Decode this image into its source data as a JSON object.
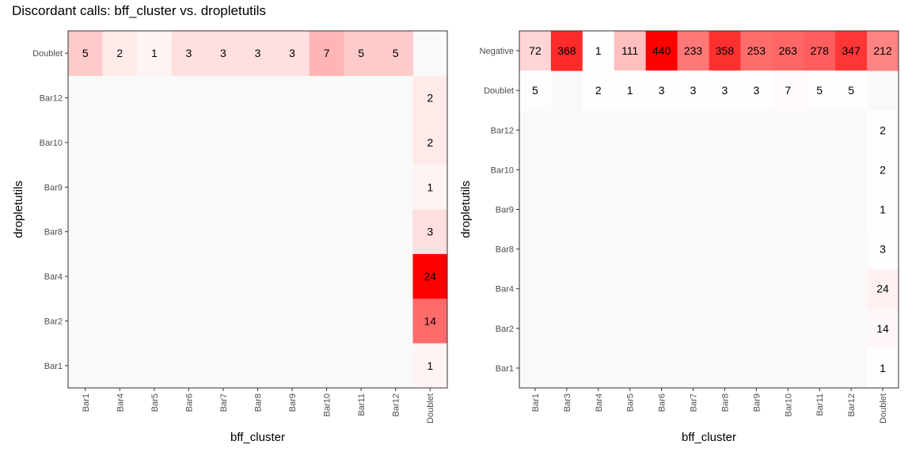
{
  "title": "Discordant calls: bff_cluster vs. dropletutils",
  "colors": {
    "low": "#FFFFFF",
    "high": "#FF0000",
    "panel_bg": "#F9F9F9",
    "text": "#000000",
    "axis_text": "#4D4D4D"
  },
  "chart_data": [
    {
      "type": "heatmap",
      "xlabel": "bff_cluster",
      "ylabel": "dropletutils",
      "x": [
        "Bar1",
        "Bar4",
        "Bar5",
        "Bar6",
        "Bar7",
        "Bar8",
        "Bar9",
        "Bar10",
        "Bar11",
        "Bar12",
        "Doublet"
      ],
      "y": [
        "Bar1",
        "Bar2",
        "Bar4",
        "Bar8",
        "Bar9",
        "Bar10",
        "Bar12",
        "Doublet"
      ],
      "max": 24,
      "grid": false,
      "cells": [
        {
          "x": "Bar1",
          "y": "Doublet",
          "value": 5
        },
        {
          "x": "Bar4",
          "y": "Doublet",
          "value": 2
        },
        {
          "x": "Bar5",
          "y": "Doublet",
          "value": 1
        },
        {
          "x": "Bar6",
          "y": "Doublet",
          "value": 3
        },
        {
          "x": "Bar7",
          "y": "Doublet",
          "value": 3
        },
        {
          "x": "Bar8",
          "y": "Doublet",
          "value": 3
        },
        {
          "x": "Bar9",
          "y": "Doublet",
          "value": 3
        },
        {
          "x": "Bar10",
          "y": "Doublet",
          "value": 7
        },
        {
          "x": "Bar11",
          "y": "Doublet",
          "value": 5
        },
        {
          "x": "Bar12",
          "y": "Doublet",
          "value": 5
        },
        {
          "x": "Doublet",
          "y": "Bar12",
          "value": 2
        },
        {
          "x": "Doublet",
          "y": "Bar10",
          "value": 2
        },
        {
          "x": "Doublet",
          "y": "Bar9",
          "value": 1
        },
        {
          "x": "Doublet",
          "y": "Bar8",
          "value": 3
        },
        {
          "x": "Doublet",
          "y": "Bar4",
          "value": 24
        },
        {
          "x": "Doublet",
          "y": "Bar2",
          "value": 14
        },
        {
          "x": "Doublet",
          "y": "Bar1",
          "value": 1
        }
      ]
    },
    {
      "type": "heatmap",
      "xlabel": "bff_cluster",
      "ylabel": "dropletutils",
      "x": [
        "Bar1",
        "Bar3",
        "Bar4",
        "Bar5",
        "Bar6",
        "Bar7",
        "Bar8",
        "Bar9",
        "Bar10",
        "Bar11",
        "Bar12",
        "Doublet"
      ],
      "y": [
        "Bar1",
        "Bar2",
        "Bar4",
        "Bar8",
        "Bar9",
        "Bar10",
        "Bar12",
        "Doublet",
        "Negative"
      ],
      "max": 440,
      "grid": false,
      "cells": [
        {
          "x": "Bar1",
          "y": "Negative",
          "value": 72
        },
        {
          "x": "Bar3",
          "y": "Negative",
          "value": 368
        },
        {
          "x": "Bar4",
          "y": "Negative",
          "value": 1
        },
        {
          "x": "Bar5",
          "y": "Negative",
          "value": 111
        },
        {
          "x": "Bar6",
          "y": "Negative",
          "value": 440
        },
        {
          "x": "Bar7",
          "y": "Negative",
          "value": 233
        },
        {
          "x": "Bar8",
          "y": "Negative",
          "value": 358
        },
        {
          "x": "Bar9",
          "y": "Negative",
          "value": 253
        },
        {
          "x": "Bar10",
          "y": "Negative",
          "value": 263
        },
        {
          "x": "Bar11",
          "y": "Negative",
          "value": 278
        },
        {
          "x": "Bar12",
          "y": "Negative",
          "value": 347
        },
        {
          "x": "Doublet",
          "y": "Negative",
          "value": 212
        },
        {
          "x": "Bar1",
          "y": "Doublet",
          "value": 5
        },
        {
          "x": "Bar4",
          "y": "Doublet",
          "value": 2
        },
        {
          "x": "Bar5",
          "y": "Doublet",
          "value": 1
        },
        {
          "x": "Bar6",
          "y": "Doublet",
          "value": 3
        },
        {
          "x": "Bar7",
          "y": "Doublet",
          "value": 3
        },
        {
          "x": "Bar8",
          "y": "Doublet",
          "value": 3
        },
        {
          "x": "Bar9",
          "y": "Doublet",
          "value": 3
        },
        {
          "x": "Bar10",
          "y": "Doublet",
          "value": 7
        },
        {
          "x": "Bar11",
          "y": "Doublet",
          "value": 5
        },
        {
          "x": "Bar12",
          "y": "Doublet",
          "value": 5
        },
        {
          "x": "Doublet",
          "y": "Bar12",
          "value": 2
        },
        {
          "x": "Doublet",
          "y": "Bar10",
          "value": 2
        },
        {
          "x": "Doublet",
          "y": "Bar9",
          "value": 1
        },
        {
          "x": "Doublet",
          "y": "Bar8",
          "value": 3
        },
        {
          "x": "Doublet",
          "y": "Bar4",
          "value": 24
        },
        {
          "x": "Doublet",
          "y": "Bar2",
          "value": 14
        },
        {
          "x": "Doublet",
          "y": "Bar1",
          "value": 1
        }
      ]
    }
  ]
}
